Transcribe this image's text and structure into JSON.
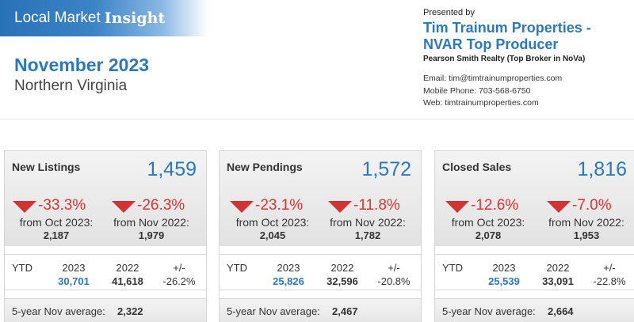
{
  "header": {
    "banner_part1": "Local Market",
    "banner_part2": "Insight",
    "period": "November 2023",
    "region": "Northern Virginia"
  },
  "agent": {
    "presented_by": "Presented by",
    "name_line1": "Tim Trainum Properties -",
    "name_line2": "NVAR Top Producer",
    "brokerage": "Pearson Smith Realty (Top Broker in NoVa)",
    "email": "Email: tim@timtrainumproperties.com",
    "phone": "Mobile Phone: 703-568-6750",
    "web": "Web: timtrainumproperties.com"
  },
  "colors": {
    "accent_blue": "#2a79c0",
    "negative_red": "#d33333"
  },
  "cards": [
    {
      "label": "New Listings",
      "value": "1,459",
      "change_month": {
        "pct": "-33.3%",
        "label": "from Oct 2023:",
        "value": "2,187",
        "direction": "down"
      },
      "change_year": {
        "pct": "-26.3%",
        "label": "from Nov 2022:",
        "value": "1,979",
        "direction": "down"
      },
      "ytd": {
        "label": "YTD",
        "h1": "2023",
        "h2": "2022",
        "h3": "+/-",
        "v1": "30,701",
        "v2": "41,618",
        "v3": "-26.2%"
      },
      "avg": {
        "label": "5-year Nov average:",
        "value": "2,322"
      }
    },
    {
      "label": "New Pendings",
      "value": "1,572",
      "change_month": {
        "pct": "-23.1%",
        "label": "from Oct 2023:",
        "value": "2,045",
        "direction": "down"
      },
      "change_year": {
        "pct": "-11.8%",
        "label": "from Nov 2022:",
        "value": "1,782",
        "direction": "down"
      },
      "ytd": {
        "label": "YTD",
        "h1": "2023",
        "h2": "2022",
        "h3": "+/-",
        "v1": "25,826",
        "v2": "32,596",
        "v3": "-20.8%"
      },
      "avg": {
        "label": "5-year Nov average:",
        "value": "2,467"
      }
    },
    {
      "label": "Closed Sales",
      "value": "1,816",
      "change_month": {
        "pct": "-12.6%",
        "label": "from Oct 2023:",
        "value": "2,078",
        "direction": "down"
      },
      "change_year": {
        "pct": "-7.0%",
        "label": "from Nov 2022:",
        "value": "1,953",
        "direction": "down"
      },
      "ytd": {
        "label": "YTD",
        "h1": "2023",
        "h2": "2022",
        "h3": "+/-",
        "v1": "25,539",
        "v2": "33,091",
        "v3": "-22.8%"
      },
      "avg": {
        "label": "5-year Nov average:",
        "value": "2,664"
      }
    }
  ]
}
